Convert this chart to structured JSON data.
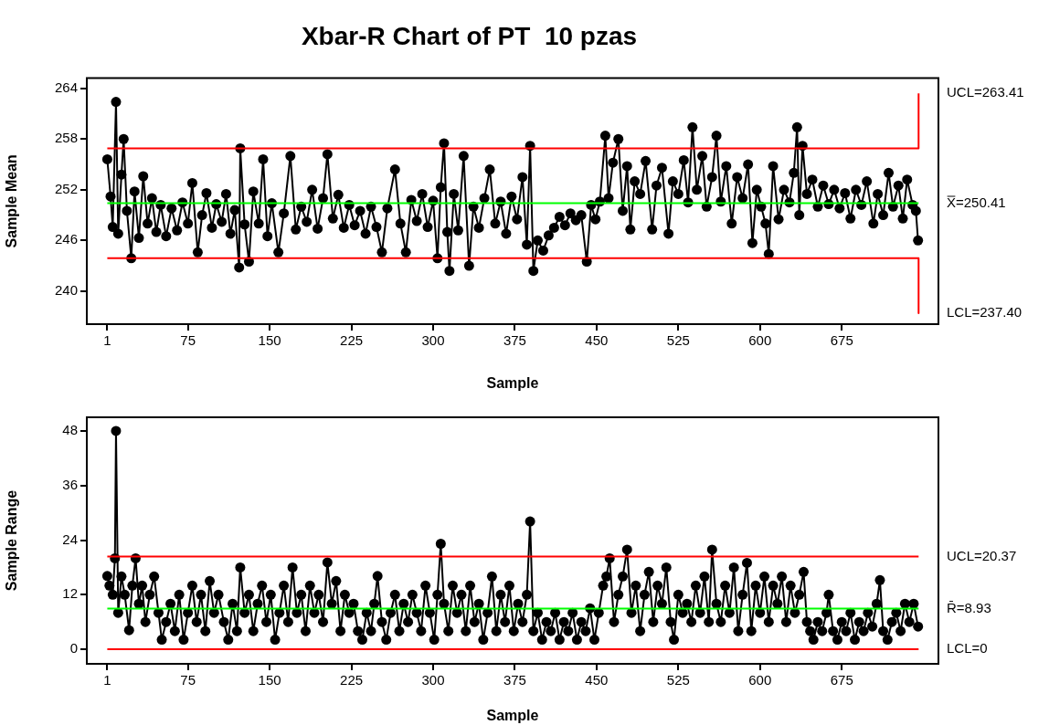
{
  "chart_data": [
    {
      "type": "line",
      "title": "Xbar-R Chart of PT  10 pzas",
      "xlabel": "Sample",
      "ylabel": "Sample Mean",
      "xlim": [
        -17.8,
        763.7
      ],
      "xticks": [
        1,
        75,
        150,
        225,
        300,
        375,
        450,
        525,
        600,
        675
      ],
      "ylim": [
        236.1,
        265.2
      ],
      "yticks": [
        240,
        246,
        252,
        258,
        264
      ],
      "grid": false,
      "marker": "circle",
      "line_style": "solid",
      "series": [
        {
          "color": "#ff0000",
          "marker": "none",
          "x": [
            1,
            745.5,
            745.5
          ],
          "values": [
            256.9,
            256.9,
            263.41
          ]
        },
        {
          "color": "#00ff00",
          "marker": "none",
          "x": [
            1,
            745.5
          ],
          "values": [
            250.41,
            250.41
          ]
        },
        {
          "color": "#ff0000",
          "marker": "none",
          "x": [
            1,
            745.5,
            745.5
          ],
          "values": [
            243.9,
            243.9,
            237.4
          ]
        },
        {
          "color": "#000000",
          "x": [
            1,
            4,
            6,
            9,
            11,
            14,
            16,
            19,
            23,
            26,
            30,
            34,
            38,
            42,
            46,
            50,
            55,
            60,
            65,
            70,
            75,
            79,
            84,
            88,
            92,
            97,
            101,
            106,
            110,
            114,
            118,
            122,
            123,
            127,
            131,
            135,
            140,
            144,
            148,
            152,
            158,
            163,
            169,
            174,
            179,
            184,
            189,
            194,
            199,
            203,
            208,
            213,
            218,
            223,
            228,
            233,
            238,
            243,
            248,
            253,
            258,
            265,
            270,
            275,
            280,
            285,
            290,
            295,
            300,
            304,
            307,
            310,
            313,
            315,
            319,
            323,
            328,
            333,
            337,
            342,
            347,
            352,
            357,
            362,
            367,
            372,
            377,
            382,
            386,
            389,
            392,
            396,
            401,
            406,
            411,
            416,
            421,
            426,
            431,
            436,
            441,
            445,
            449,
            453,
            458,
            461,
            465,
            470,
            474,
            478,
            481,
            485,
            490,
            495,
            501,
            505,
            510,
            516,
            520,
            525,
            530,
            534,
            538,
            542,
            547,
            551,
            556,
            560,
            564,
            569,
            574,
            579,
            584,
            589,
            593,
            597,
            601,
            605,
            608,
            612,
            617,
            622,
            627,
            631,
            634,
            636,
            639,
            643,
            648,
            653,
            658,
            663,
            668,
            673,
            678,
            683,
            688,
            693,
            698,
            704,
            708,
            713,
            718,
            722,
            727,
            731,
            735,
            740,
            743,
            745
          ],
          "values": [
            255.6,
            251.2,
            247.6,
            262.4,
            246.8,
            253.8,
            258.0,
            249.5,
            243.9,
            251.8,
            246.3,
            253.6,
            248.0,
            251.0,
            247.0,
            250.2,
            246.5,
            249.8,
            247.2,
            250.5,
            248.0,
            252.8,
            244.6,
            249.0,
            251.6,
            247.5,
            250.3,
            248.2,
            251.5,
            246.8,
            249.6,
            242.8,
            256.9,
            247.9,
            243.5,
            251.8,
            248.0,
            255.6,
            246.5,
            250.4,
            244.6,
            249.2,
            256.0,
            247.3,
            250.0,
            248.2,
            252.0,
            247.4,
            251.0,
            256.2,
            248.6,
            251.4,
            247.5,
            250.2,
            247.8,
            249.5,
            246.8,
            250.0,
            247.6,
            244.6,
            249.8,
            254.4,
            248.0,
            244.6,
            250.8,
            248.3,
            251.5,
            247.6,
            250.7,
            243.9,
            252.3,
            257.5,
            247.0,
            242.4,
            251.5,
            247.2,
            256.0,
            243.0,
            250.0,
            247.5,
            251.0,
            254.4,
            248.0,
            250.6,
            246.8,
            251.2,
            248.5,
            253.5,
            245.5,
            257.2,
            242.4,
            246.0,
            244.8,
            246.6,
            247.5,
            248.8,
            247.8,
            249.2,
            248.4,
            249.0,
            243.5,
            250.2,
            248.5,
            250.6,
            258.4,
            251.0,
            255.2,
            258.0,
            249.5,
            254.8,
            247.3,
            253.0,
            251.5,
            255.4,
            247.3,
            252.5,
            254.6,
            246.8,
            253.0,
            251.5,
            255.5,
            250.5,
            259.4,
            252.0,
            256.0,
            250.0,
            253.5,
            258.4,
            250.6,
            254.8,
            248.0,
            253.5,
            251.0,
            255.0,
            245.7,
            252.0,
            250.0,
            248.0,
            244.4,
            254.8,
            248.5,
            252.0,
            250.5,
            254.0,
            259.4,
            249.0,
            257.2,
            251.5,
            253.2,
            250.0,
            252.5,
            250.3,
            252.0,
            249.8,
            251.6,
            248.6,
            252.0,
            250.2,
            253.0,
            248.0,
            251.5,
            249.0,
            254.0,
            250.0,
            252.5,
            248.6,
            253.2,
            250.2,
            249.5,
            246.0
          ]
        }
      ],
      "annotations": [
        "UCL=263.41",
        "X̿=250.41",
        "LCL=237.40"
      ]
    },
    {
      "type": "line",
      "xlabel": "Sample",
      "ylabel": "Sample Range",
      "xlim": [
        -17.8,
        763.7
      ],
      "xticks": [
        1,
        75,
        150,
        225,
        300,
        375,
        450,
        525,
        600,
        675
      ],
      "ylim": [
        -3.2,
        51
      ],
      "yticks": [
        0,
        12,
        24,
        36,
        48
      ],
      "grid": false,
      "marker": "circle",
      "line_style": "solid",
      "series": [
        {
          "color": "#ff0000",
          "marker": "none",
          "x": [
            1,
            745.5
          ],
          "values": [
            20.37,
            20.37
          ]
        },
        {
          "color": "#00ff00",
          "marker": "none",
          "x": [
            1,
            745.5
          ],
          "values": [
            8.93,
            8.93
          ]
        },
        {
          "color": "#ff0000",
          "marker": "none",
          "x": [
            1,
            745.5
          ],
          "values": [
            0,
            0
          ]
        },
        {
          "color": "#000000",
          "x": [
            1,
            3,
            6,
            8,
            9,
            11,
            14,
            17,
            21,
            24,
            27,
            30,
            33,
            36,
            40,
            44,
            48,
            51,
            55,
            59,
            63,
            67,
            71,
            75,
            79,
            83,
            87,
            91,
            95,
            99,
            103,
            108,
            112,
            116,
            120,
            123,
            127,
            131,
            135,
            139,
            143,
            147,
            151,
            155,
            159,
            163,
            167,
            171,
            175,
            179,
            183,
            187,
            191,
            195,
            199,
            203,
            207,
            211,
            215,
            219,
            223,
            227,
            231,
            235,
            239,
            243,
            246,
            249,
            253,
            257,
            261,
            265,
            269,
            273,
            277,
            281,
            285,
            289,
            293,
            297,
            301,
            304,
            307,
            310,
            314,
            318,
            322,
            326,
            330,
            334,
            338,
            342,
            346,
            350,
            354,
            358,
            362,
            366,
            370,
            374,
            378,
            382,
            386,
            389,
            392,
            396,
            400,
            404,
            408,
            412,
            416,
            420,
            424,
            428,
            432,
            436,
            440,
            444,
            448,
            452,
            456,
            459,
            462,
            466,
            470,
            474,
            478,
            482,
            486,
            490,
            494,
            498,
            502,
            506,
            510,
            514,
            518,
            521,
            525,
            529,
            533,
            537,
            541,
            545,
            549,
            553,
            556,
            560,
            564,
            568,
            572,
            576,
            580,
            584,
            588,
            592,
            596,
            600,
            604,
            608,
            612,
            616,
            620,
            624,
            628,
            632,
            636,
            640,
            643,
            646,
            649,
            653,
            657,
            661,
            663,
            667,
            671,
            675,
            679,
            683,
            687,
            691,
            695,
            699,
            703,
            707,
            710,
            713,
            717,
            721,
            725,
            729,
            733,
            737,
            741,
            745
          ],
          "values": [
            16.1,
            14.0,
            12.0,
            20.0,
            48.0,
            8.0,
            16.0,
            12.0,
            4.2,
            14.0,
            20.0,
            10.0,
            14.0,
            6.0,
            12.0,
            16.0,
            8.0,
            2.1,
            6.0,
            10.0,
            4.0,
            12.0,
            2.1,
            8.0,
            14.0,
            6.0,
            12.0,
            4.0,
            15.0,
            8.0,
            12.0,
            6.0,
            2.1,
            10.0,
            4.0,
            18.0,
            8.0,
            12.0,
            4.0,
            10.0,
            14.0,
            6.0,
            12.0,
            2.1,
            8.0,
            14.0,
            6.0,
            18.0,
            8.0,
            12.0,
            4.0,
            14.0,
            8.0,
            12.0,
            6.0,
            19.1,
            10.0,
            15.0,
            4.0,
            12.0,
            8.0,
            10.0,
            4.0,
            2.1,
            8.0,
            4.0,
            10.0,
            16.1,
            6.0,
            2.1,
            8.0,
            12.0,
            4.0,
            10.0,
            6.0,
            12.0,
            8.0,
            4.0,
            14.0,
            8.0,
            2.1,
            12.0,
            23.2,
            10.0,
            4.0,
            14.0,
            8.0,
            12.0,
            4.0,
            14.0,
            6.0,
            10.0,
            2.1,
            8.0,
            16.0,
            4.0,
            12.0,
            6.0,
            14.0,
            4.0,
            10.0,
            6.0,
            12.0,
            28.1,
            4.0,
            8.0,
            2.1,
            6.0,
            4.0,
            8.0,
            2.1,
            6.0,
            4.0,
            8.0,
            2.1,
            6.0,
            4.0,
            9.0,
            2.1,
            8.0,
            14.0,
            16.0,
            20.0,
            6.0,
            12.0,
            16.0,
            21.9,
            8.0,
            14.0,
            4.0,
            12.0,
            17.0,
            6.0,
            14.0,
            10.0,
            18.0,
            6.0,
            2.1,
            12.0,
            8.0,
            10.0,
            6.0,
            14.0,
            8.0,
            16.0,
            6.0,
            21.9,
            10.0,
            6.0,
            14.0,
            8.0,
            18.0,
            4.0,
            12.0,
            19.0,
            4.0,
            14.0,
            8.0,
            16.0,
            6.0,
            14.0,
            10.0,
            16.0,
            6.0,
            14.0,
            8.0,
            12.0,
            17.0,
            6.0,
            4.0,
            2.1,
            6.0,
            4.0,
            8.0,
            12.0,
            4.0,
            2.1,
            6.0,
            4.0,
            8.0,
            2.1,
            6.0,
            4.0,
            8.0,
            5.0,
            10.0,
            15.2,
            4.0,
            2.1,
            6.0,
            8.0,
            4.0,
            10.0,
            6.0,
            10.0,
            5.0
          ]
        }
      ],
      "annotations": [
        "UCL=20.37",
        "R̄=8.93",
        "LCL=0"
      ]
    }
  ]
}
